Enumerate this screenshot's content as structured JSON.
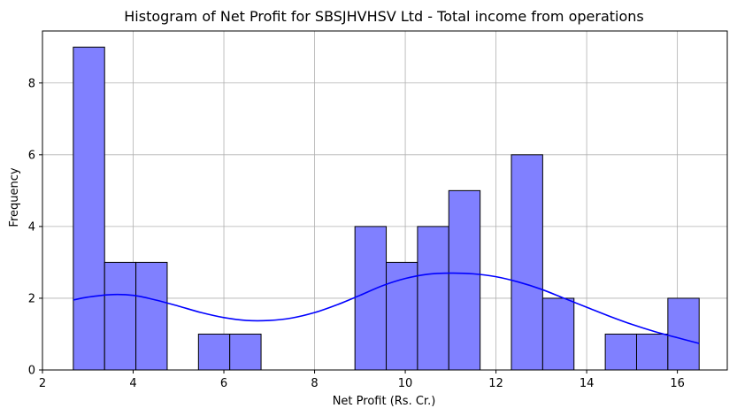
{
  "chart_data": {
    "type": "bar",
    "title": "Histogram of Net Profit for SBSJHVHSV Ltd - Total income from operations",
    "xlabel": "Net Profit (Rs. Cr.)",
    "ylabel": "Frequency",
    "xlim": [
      2.0,
      17.1
    ],
    "ylim": [
      0,
      9.45
    ],
    "xticks": [
      2,
      4,
      6,
      8,
      10,
      12,
      14,
      16
    ],
    "yticks": [
      0,
      2,
      4,
      6,
      8
    ],
    "grid": true,
    "bar_color": "#8080ff",
    "bar_edge_color": "#000000",
    "kde_color": "#0000ff",
    "bins": [
      {
        "start": 2.68,
        "end": 3.37,
        "count": 9
      },
      {
        "start": 3.37,
        "end": 4.06,
        "count": 3
      },
      {
        "start": 4.06,
        "end": 4.75,
        "count": 3
      },
      {
        "start": 4.75,
        "end": 5.44,
        "count": 0
      },
      {
        "start": 5.44,
        "end": 6.13,
        "count": 1
      },
      {
        "start": 6.13,
        "end": 6.82,
        "count": 1
      },
      {
        "start": 6.82,
        "end": 7.51,
        "count": 0
      },
      {
        "start": 7.51,
        "end": 8.2,
        "count": 0
      },
      {
        "start": 8.2,
        "end": 8.89,
        "count": 0
      },
      {
        "start": 8.89,
        "end": 9.58,
        "count": 4
      },
      {
        "start": 9.58,
        "end": 10.27,
        "count": 3
      },
      {
        "start": 10.27,
        "end": 10.96,
        "count": 4
      },
      {
        "start": 10.96,
        "end": 11.65,
        "count": 5
      },
      {
        "start": 11.65,
        "end": 12.34,
        "count": 0
      },
      {
        "start": 12.34,
        "end": 13.03,
        "count": 6
      },
      {
        "start": 13.03,
        "end": 13.72,
        "count": 2
      },
      {
        "start": 13.72,
        "end": 14.41,
        "count": 0
      },
      {
        "start": 14.41,
        "end": 15.1,
        "count": 1
      },
      {
        "start": 15.1,
        "end": 15.79,
        "count": 1
      },
      {
        "start": 15.79,
        "end": 16.48,
        "count": 2
      }
    ],
    "kde": {
      "x": [
        2.68,
        3.0,
        3.5,
        4.0,
        4.5,
        5.0,
        5.5,
        6.0,
        6.5,
        7.0,
        7.5,
        8.0,
        8.5,
        9.0,
        9.5,
        10.0,
        10.5,
        11.0,
        11.5,
        12.0,
        12.5,
        13.0,
        13.5,
        14.0,
        14.5,
        15.0,
        15.5,
        16.0,
        16.48
      ],
      "y": [
        1.95,
        2.03,
        2.1,
        2.08,
        1.95,
        1.78,
        1.6,
        1.46,
        1.38,
        1.38,
        1.45,
        1.6,
        1.82,
        2.08,
        2.35,
        2.55,
        2.67,
        2.7,
        2.68,
        2.6,
        2.45,
        2.25,
        2.0,
        1.75,
        1.5,
        1.27,
        1.07,
        0.9,
        0.74
      ]
    }
  }
}
